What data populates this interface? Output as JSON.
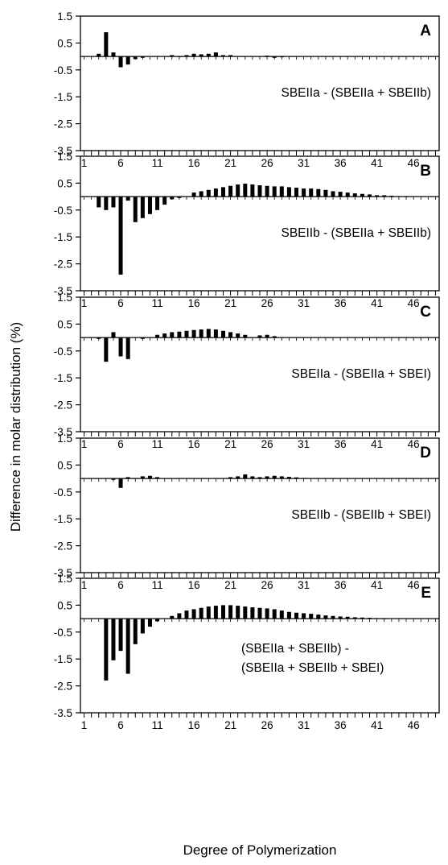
{
  "figure": {
    "ylabel": "Difference in molar distribution (%)",
    "xlabel": "Degree of Polymerization"
  },
  "chart_data": [
    {
      "type": "bar",
      "panel_letter": "A",
      "annotation": [
        "SBEIIa - (SBEIIa + SBEIIb)"
      ],
      "ylim": [
        -3.5,
        1.5
      ],
      "yticks": [
        "1.5",
        "0.5",
        "-0.5",
        "-1.5",
        "-2.5",
        "-3.5"
      ],
      "xticks": [
        "1",
        "6",
        "11",
        "16",
        "21",
        "26",
        "31",
        "36",
        "41",
        "46"
      ],
      "x": [
        1,
        2,
        3,
        4,
        5,
        6,
        7,
        8,
        9,
        10,
        11,
        12,
        13,
        14,
        15,
        16,
        17,
        18,
        19,
        20,
        21,
        22,
        23,
        24,
        25,
        26,
        27,
        28,
        29,
        30,
        31,
        32,
        33,
        34,
        35,
        36,
        37,
        38,
        39,
        40,
        41,
        42,
        43,
        44,
        45,
        46,
        47,
        48,
        49
      ],
      "values": [
        0,
        0,
        0.1,
        0.9,
        0.15,
        -0.4,
        -0.3,
        -0.1,
        -0.05,
        0,
        0.02,
        0,
        0.05,
        0.01,
        0.05,
        0.1,
        0.08,
        0.1,
        0.15,
        0.05,
        0.05,
        0,
        0,
        0,
        0,
        0.03,
        -0.05,
        -0.03,
        0,
        0,
        0,
        0,
        0,
        0,
        0,
        0,
        0,
        0,
        0,
        0,
        0,
        0,
        0,
        0,
        0,
        0,
        0,
        0,
        0
      ]
    },
    {
      "type": "bar",
      "panel_letter": "B",
      "annotation": [
        "SBEIIb - (SBEIIa + SBEIIb)"
      ],
      "ylim": [
        -3.5,
        1.5
      ],
      "yticks": [
        "1.5",
        "0.5",
        "-0.5",
        "-1.5",
        "-2.5",
        "-3.5"
      ],
      "xticks": [
        "1",
        "6",
        "11",
        "16",
        "21",
        "26",
        "31",
        "36",
        "41",
        "46"
      ],
      "x": [
        1,
        2,
        3,
        4,
        5,
        6,
        7,
        8,
        9,
        10,
        11,
        12,
        13,
        14,
        15,
        16,
        17,
        18,
        19,
        20,
        21,
        22,
        23,
        24,
        25,
        26,
        27,
        28,
        29,
        30,
        31,
        32,
        33,
        34,
        35,
        36,
        37,
        38,
        39,
        40,
        41,
        42,
        43,
        44,
        45,
        46,
        47,
        48,
        49
      ],
      "values": [
        0,
        0,
        -0.4,
        -0.5,
        -0.4,
        -2.9,
        -0.15,
        -0.95,
        -0.8,
        -0.65,
        -0.5,
        -0.3,
        -0.1,
        -0.05,
        0,
        0.15,
        0.2,
        0.25,
        0.3,
        0.35,
        0.4,
        0.45,
        0.48,
        0.45,
        0.42,
        0.4,
        0.38,
        0.38,
        0.35,
        0.33,
        0.3,
        0.3,
        0.28,
        0.25,
        0.2,
        0.18,
        0.15,
        0.12,
        0.1,
        0.08,
        0.05,
        0.05,
        0.03,
        0.02,
        0.01,
        0,
        0,
        0,
        0
      ]
    },
    {
      "type": "bar",
      "panel_letter": "C",
      "annotation": [
        "SBEIIa - (SBEIIa + SBEI)"
      ],
      "ylim": [
        -3.5,
        1.5
      ],
      "yticks": [
        "1.5",
        "0.5",
        "-0.5",
        "-1.5",
        "-2.5",
        "-3.5"
      ],
      "xticks": [
        "1",
        "6",
        "11",
        "16",
        "21",
        "26",
        "31",
        "36",
        "41",
        "46"
      ],
      "x": [
        1,
        2,
        3,
        4,
        5,
        6,
        7,
        8,
        9,
        10,
        11,
        12,
        13,
        14,
        15,
        16,
        17,
        18,
        19,
        20,
        21,
        22,
        23,
        24,
        25,
        26,
        27,
        28,
        29,
        30,
        31,
        32,
        33,
        34,
        35,
        36,
        37,
        38,
        39,
        40,
        41,
        42,
        43,
        44,
        45,
        46,
        47,
        48,
        49
      ],
      "values": [
        0,
        0,
        -0.05,
        -0.9,
        0.2,
        -0.7,
        -0.8,
        0,
        -0.05,
        0,
        0.1,
        0.15,
        0.2,
        0.22,
        0.25,
        0.28,
        0.3,
        0.32,
        0.3,
        0.25,
        0.2,
        0.15,
        0.1,
        0,
        0.08,
        0.1,
        0.05,
        0,
        0,
        0,
        0,
        0,
        0,
        0,
        0,
        0,
        0,
        0,
        0,
        0,
        0,
        0,
        0,
        0,
        0,
        0,
        0,
        0,
        0
      ]
    },
    {
      "type": "bar",
      "panel_letter": "D",
      "annotation": [
        "SBEIIb - (SBEIIb + SBEI)"
      ],
      "ylim": [
        -3.5,
        1.5
      ],
      "yticks": [
        "1.5",
        "0.5",
        "-0.5",
        "-1.5",
        "-2.5",
        "-3.5"
      ],
      "xticks": [
        "1",
        "6",
        "11",
        "16",
        "21",
        "26",
        "31",
        "36",
        "41",
        "46"
      ],
      "x": [
        1,
        2,
        3,
        4,
        5,
        6,
        7,
        8,
        9,
        10,
        11,
        12,
        13,
        14,
        15,
        16,
        17,
        18,
        19,
        20,
        21,
        22,
        23,
        24,
        25,
        26,
        27,
        28,
        29,
        30,
        31,
        32,
        33,
        34,
        35,
        36,
        37,
        38,
        39,
        40,
        41,
        42,
        43,
        44,
        45,
        46,
        47,
        48,
        49
      ],
      "values": [
        0,
        0,
        0,
        0,
        -0.05,
        -0.35,
        0.05,
        0.02,
        0.08,
        0.1,
        0.05,
        0,
        0,
        0,
        0,
        0,
        0,
        0,
        0,
        0,
        0.05,
        0.08,
        0.15,
        0.08,
        0.05,
        0.08,
        0.1,
        0.08,
        0.06,
        0.04,
        0.02,
        0,
        0,
        0,
        0,
        0,
        0,
        0,
        0,
        0,
        0,
        0,
        0,
        0,
        0,
        0,
        0,
        0,
        0
      ]
    },
    {
      "type": "bar",
      "panel_letter": "E",
      "annotation": [
        "(SBEIIa + SBEIIb) -",
        "(SBEIIa + SBEIIb + SBEI)"
      ],
      "ylim": [
        -3.5,
        1.5
      ],
      "yticks": [
        "1.5",
        "0.5",
        "-0.5",
        "-1.5",
        "-2.5",
        "-3.5"
      ],
      "xticks": [
        "1",
        "6",
        "11",
        "16",
        "21",
        "26",
        "31",
        "36",
        "41",
        "46"
      ],
      "x": [
        1,
        2,
        3,
        4,
        5,
        6,
        7,
        8,
        9,
        10,
        11,
        12,
        13,
        14,
        15,
        16,
        17,
        18,
        19,
        20,
        21,
        22,
        23,
        24,
        25,
        26,
        27,
        28,
        29,
        30,
        31,
        32,
        33,
        34,
        35,
        36,
        37,
        38,
        39,
        40,
        41,
        42,
        43,
        44,
        45,
        46,
        47,
        48,
        49
      ],
      "values": [
        0,
        0,
        0,
        -2.3,
        -1.55,
        -1.2,
        -2.05,
        -0.95,
        -0.55,
        -0.3,
        -0.1,
        0,
        0.1,
        0.2,
        0.3,
        0.35,
        0.4,
        0.45,
        0.48,
        0.5,
        0.5,
        0.48,
        0.45,
        0.42,
        0.4,
        0.38,
        0.35,
        0.3,
        0.25,
        0.22,
        0.2,
        0.18,
        0.15,
        0.12,
        0.1,
        0.08,
        0.07,
        0.05,
        0.04,
        0.03,
        0.02,
        0.01,
        0,
        0,
        0,
        0,
        0,
        0,
        0
      ]
    }
  ]
}
